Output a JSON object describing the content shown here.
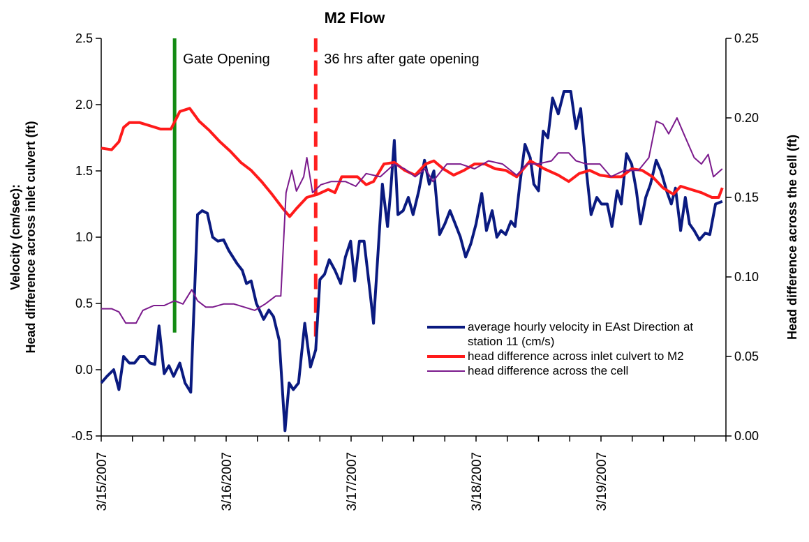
{
  "chart_data": {
    "type": "line",
    "title": "M2 Flow",
    "ylabel": [
      "Velocity (cm/sec):",
      "Head difference across inlet culvert (ft)"
    ],
    "y2label": "Head difference across the cell (ft)",
    "xlim": [
      0,
      120
    ],
    "xticks": [
      {
        "value": 0,
        "label": "3/15/2007"
      },
      {
        "value": 24,
        "label": "3/16/2007"
      },
      {
        "value": 48,
        "label": "3/17/2007"
      },
      {
        "value": 72,
        "label": "3/18/2007"
      },
      {
        "value": 96,
        "label": "3/19/2007"
      }
    ],
    "xminorticks": [
      6,
      12,
      18,
      30,
      36,
      42,
      54,
      60,
      66,
      78,
      84,
      90,
      102,
      108,
      114,
      120
    ],
    "ylim": [
      -0.5,
      2.5
    ],
    "yticks": [
      -0.5,
      {
        "value": 0,
        "label": "0.0"
      },
      0.5,
      {
        "value": 1,
        "label": "1.0"
      },
      1.5,
      {
        "value": 2,
        "label": "2.0"
      },
      2.5
    ],
    "y2lim": [
      0,
      0.25
    ],
    "y2ticks": [
      {
        "value": 0,
        "label": "0.00"
      },
      0.05,
      {
        "value": 0.1,
        "label": "0.10"
      },
      0.15,
      {
        "value": 0.2,
        "label": "0.20"
      },
      0.25
    ],
    "vlines": [
      {
        "x": 14.1,
        "ymin": 0.28,
        "ymax": 2.5,
        "color": "#138a13",
        "dashed": false,
        "label": "Gate Opening"
      },
      {
        "x": 41.2,
        "ymin": 0.25,
        "ymax": 2.5,
        "color": "#ff2020",
        "dashed": true,
        "label": "36 hrs after gate opening"
      }
    ],
    "series": [
      {
        "name": "average hourly velocity in EAst Direction at station 11 (cm/s)",
        "color": "#0a1a80",
        "width": 4,
        "x": [
          0,
          1.1,
          2.4,
          3.4,
          4.3,
          5.4,
          6.4,
          7.4,
          8.3,
          9.4,
          10.3,
          11.1,
          12.1,
          13.0,
          13.9,
          15.1,
          16.1,
          17.2,
          18.5,
          19.4,
          20.4,
          21.4,
          22.4,
          23.5,
          24.5,
          26.1,
          27.1,
          27.9,
          28.8,
          29.8,
          30.4,
          31.2,
          32.2,
          33.1,
          34.2,
          35.3,
          36.1,
          36.9,
          37.9,
          39.1,
          40.2,
          41.2,
          42.0,
          42.9,
          43.8,
          44.9,
          46.0,
          46.9,
          47.9,
          48.7,
          49.6,
          50.5,
          51.6,
          52.3,
          53.2,
          54.0,
          55.0,
          55.6,
          56.3,
          57.0,
          58.0,
          59.0,
          59.9,
          61.0,
          62.1,
          63.0,
          63.9,
          65.0,
          66.0,
          67.0,
          68.0,
          69.0,
          70.0,
          71.0,
          72.0,
          73.1,
          74.0,
          75.1,
          76.0,
          76.8,
          77.7,
          78.7,
          79.5,
          80.4,
          81.4,
          82.4,
          83.1,
          84.0,
          84.9,
          85.8,
          86.7,
          87.8,
          88.9,
          90.2,
          91.2,
          92.1,
          93.2,
          94.1,
          95.2,
          96.1,
          97.2,
          98.1,
          99.1,
          99.9,
          100.9,
          101.9,
          102.8,
          103.6,
          104.6,
          105.5,
          106.6,
          107.5,
          108.6,
          109.5,
          110.3,
          111.3,
          112.2,
          113.0,
          113.9,
          114.9,
          116.0,
          116.9,
          118.0,
          119.3
        ],
        "values": [
          -0.1,
          -0.05,
          0.0,
          -0.15,
          0.1,
          0.05,
          0.05,
          0.1,
          0.1,
          0.05,
          0.04,
          0.33,
          -0.03,
          0.03,
          -0.05,
          0.05,
          -0.1,
          -0.17,
          1.17,
          1.2,
          1.18,
          1.0,
          0.97,
          0.98,
          0.9,
          0.8,
          0.75,
          0.65,
          0.67,
          0.5,
          0.45,
          0.38,
          0.45,
          0.4,
          0.22,
          -0.46,
          -0.1,
          -0.15,
          -0.1,
          0.35,
          0.02,
          0.15,
          0.68,
          0.72,
          0.83,
          0.75,
          0.65,
          0.85,
          0.97,
          0.67,
          0.97,
          0.97,
          0.6,
          0.35,
          0.9,
          1.4,
          1.08,
          1.35,
          1.73,
          1.17,
          1.2,
          1.3,
          1.17,
          1.35,
          1.58,
          1.4,
          1.5,
          1.02,
          1.1,
          1.2,
          1.1,
          1.0,
          0.85,
          0.95,
          1.1,
          1.33,
          1.05,
          1.2,
          1.0,
          1.05,
          1.02,
          1.12,
          1.08,
          1.4,
          1.7,
          1.6,
          1.4,
          1.35,
          1.8,
          1.75,
          2.05,
          1.93,
          2.1,
          2.1,
          1.82,
          1.97,
          1.5,
          1.17,
          1.3,
          1.25,
          1.25,
          1.08,
          1.35,
          1.25,
          1.63,
          1.55,
          1.35,
          1.1,
          1.3,
          1.4,
          1.58,
          1.5,
          1.35,
          1.25,
          1.37,
          1.05,
          1.3,
          1.1,
          1.05,
          0.98,
          1.03,
          1.02,
          1.25,
          1.27
        ]
      },
      {
        "name": "head difference across inlet culvert to M2",
        "color": "#ff1a1a",
        "width": 4,
        "axis": "y2",
        "x": [
          0,
          2.0,
          3.4,
          4.3,
          5.4,
          7.4,
          9.4,
          11.4,
          13.4,
          15.1,
          17.0,
          18.8,
          20.8,
          22.8,
          24.8,
          26.8,
          28.8,
          30.8,
          32.8,
          34.9,
          36.2,
          37.5,
          39.5,
          41.6,
          43.6,
          44.9,
          46.2,
          47.6,
          49.2,
          50.9,
          52.3,
          54.3,
          56.3,
          58.3,
          60.3,
          62.3,
          63.9,
          65.7,
          67.7,
          69.7,
          71.7,
          73.7,
          75.7,
          77.7,
          79.8,
          82.4,
          85.1,
          87.8,
          89.8,
          91.8,
          93.8,
          95.8,
          97.9,
          99.9,
          101.9,
          103.9,
          105.9,
          107.9,
          109.9,
          111.3,
          113.3,
          115.3,
          117.3,
          118.6,
          119.3
        ],
        "values": [
          0.181,
          0.18,
          0.185,
          0.194,
          0.197,
          0.197,
          0.195,
          0.193,
          0.193,
          0.204,
          0.206,
          0.198,
          0.192,
          0.185,
          0.179,
          0.172,
          0.167,
          0.16,
          0.152,
          0.143,
          0.138,
          0.143,
          0.15,
          0.152,
          0.155,
          0.153,
          0.163,
          0.163,
          0.163,
          0.158,
          0.16,
          0.171,
          0.172,
          0.167,
          0.164,
          0.171,
          0.173,
          0.168,
          0.164,
          0.167,
          0.171,
          0.171,
          0.168,
          0.167,
          0.163,
          0.173,
          0.168,
          0.164,
          0.16,
          0.165,
          0.167,
          0.164,
          0.163,
          0.163,
          0.168,
          0.167,
          0.163,
          0.156,
          0.152,
          0.157,
          0.155,
          0.153,
          0.15,
          0.15,
          0.156
        ]
      },
      {
        "name": "head difference across the cell",
        "color": "#7b1a8c",
        "width": 2,
        "axis": "y2",
        "x": [
          0,
          2.0,
          3.4,
          4.7,
          6.7,
          8.0,
          10.1,
          12.1,
          14.1,
          15.7,
          17.4,
          18.5,
          20.1,
          21.4,
          23.5,
          25.5,
          27.5,
          29.5,
          31.5,
          33.5,
          34.5,
          35.5,
          36.6,
          37.5,
          38.9,
          39.5,
          40.6,
          42.2,
          44.2,
          46.9,
          48.9,
          50.9,
          53.6,
          56.3,
          58.3,
          60.3,
          62.3,
          63.7,
          66.4,
          69.0,
          71.7,
          74.4,
          77.1,
          79.8,
          81.8,
          83.8,
          86.5,
          87.8,
          89.8,
          91.2,
          93.2,
          95.8,
          97.9,
          100.5,
          103.2,
          105.2,
          106.6,
          107.9,
          109.0,
          110.6,
          111.9,
          113.9,
          115.3,
          116.6,
          117.6,
          119.3
        ],
        "values": [
          0.08,
          0.08,
          0.078,
          0.071,
          0.071,
          0.079,
          0.082,
          0.082,
          0.085,
          0.083,
          0.092,
          0.085,
          0.081,
          0.081,
          0.083,
          0.083,
          0.081,
          0.079,
          0.083,
          0.088,
          0.088,
          0.153,
          0.167,
          0.154,
          0.163,
          0.175,
          0.153,
          0.158,
          0.16,
          0.16,
          0.157,
          0.165,
          0.163,
          0.171,
          0.168,
          0.163,
          0.168,
          0.16,
          0.171,
          0.171,
          0.168,
          0.173,
          0.171,
          0.164,
          0.171,
          0.171,
          0.173,
          0.178,
          0.178,
          0.173,
          0.171,
          0.171,
          0.163,
          0.167,
          0.167,
          0.175,
          0.198,
          0.196,
          0.19,
          0.2,
          0.19,
          0.175,
          0.171,
          0.177,
          0.163,
          0.168
        ]
      }
    ]
  }
}
